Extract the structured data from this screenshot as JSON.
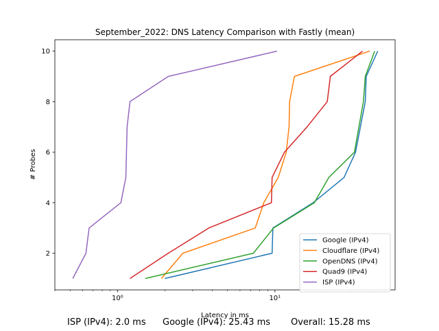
{
  "chart_data": {
    "type": "line",
    "title": "September_2022: DNS Latency Comparison with Fastly (mean)",
    "xlabel": "Latency in ms",
    "ylabel": "# Probes",
    "xscale": "log",
    "xlim": [
      0.4,
      58
    ],
    "ylim": [
      0.55,
      10.45
    ],
    "grid": false,
    "legend_position": "lower right",
    "x_ticks": [
      {
        "value": 1,
        "label": "10⁰"
      },
      {
        "value": 10,
        "label": "10¹"
      }
    ],
    "y_ticks": [
      2,
      4,
      6,
      8,
      10
    ],
    "series": [
      {
        "name": "Google (IPv4)",
        "color": "#1f77b4",
        "points": [
          [
            2.0,
            1
          ],
          [
            9.6,
            2
          ],
          [
            9.7,
            3
          ],
          [
            17.5,
            4
          ],
          [
            27.5,
            5
          ],
          [
            32.5,
            6
          ],
          [
            37.5,
            8
          ],
          [
            38.0,
            9
          ],
          [
            45.0,
            10
          ]
        ]
      },
      {
        "name": "Cloudflare (IPv4)",
        "color": "#ff7f0e",
        "points": [
          [
            1.9,
            1
          ],
          [
            2.6,
            2
          ],
          [
            7.5,
            3
          ],
          [
            8.5,
            4
          ],
          [
            10.5,
            5
          ],
          [
            11.8,
            6
          ],
          [
            12.3,
            7
          ],
          [
            12.4,
            8
          ],
          [
            13.3,
            9
          ],
          [
            40.0,
            10
          ]
        ]
      },
      {
        "name": "OpenDNS (IPv4)",
        "color": "#2ca02c",
        "points": [
          [
            1.5,
            1
          ],
          [
            7.3,
            2
          ],
          [
            9.8,
            3
          ],
          [
            17.8,
            4
          ],
          [
            22.0,
            5
          ],
          [
            32.0,
            6
          ],
          [
            36.5,
            8
          ],
          [
            37.5,
            9
          ],
          [
            43.0,
            10
          ]
        ]
      },
      {
        "name": "Quad9 (IPv4)",
        "color": "#d62728",
        "points": [
          [
            1.2,
            1
          ],
          [
            2.1,
            2
          ],
          [
            3.8,
            3
          ],
          [
            9.5,
            4
          ],
          [
            9.6,
            5
          ],
          [
            11.5,
            6
          ],
          [
            16.0,
            7
          ],
          [
            21.5,
            8
          ],
          [
            22.5,
            9
          ],
          [
            36.0,
            10
          ]
        ]
      },
      {
        "name": "ISP (IPv4)",
        "color": "#9467bd",
        "points": [
          [
            0.52,
            1
          ],
          [
            0.63,
            2
          ],
          [
            0.66,
            3
          ],
          [
            1.05,
            4
          ],
          [
            1.13,
            5
          ],
          [
            1.15,
            7
          ],
          [
            1.2,
            8
          ],
          [
            2.1,
            9
          ],
          [
            10.3,
            10
          ]
        ]
      }
    ]
  },
  "footer": {
    "isp": "ISP (IPv4): 2.0 ms",
    "google": "Google (IPv4): 25.43 ms",
    "overall": "Overall: 15.28 ms"
  }
}
